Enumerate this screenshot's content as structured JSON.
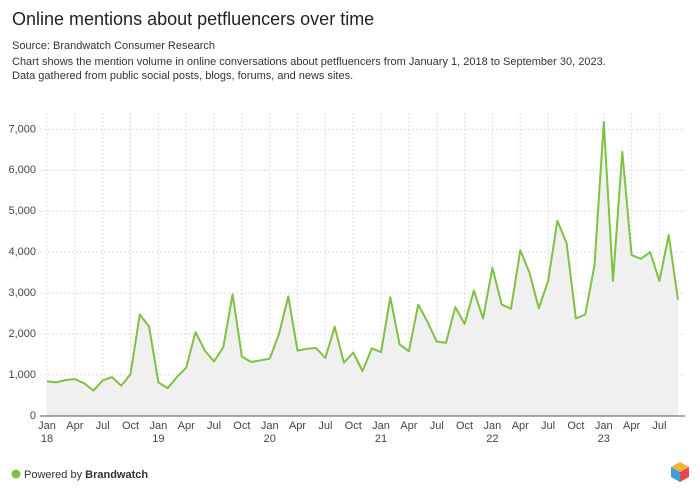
{
  "chart_data": {
    "type": "line",
    "title": "Online mentions about petfluencers over time",
    "source": "Source: Brandwatch Consumer Research",
    "notes": [
      "Chart shows the mention volume in online conversations about petfluencers from January 1, 2018 to September 30, 2023.",
      "Data gathered from public social posts, blogs, forums, and news sites."
    ],
    "categories": [
      "Jan 18",
      null,
      null,
      "Apr",
      null,
      null,
      "Jul",
      null,
      null,
      "Oct",
      null,
      null,
      "Jan 19",
      null,
      null,
      "Apr",
      null,
      null,
      "Jul",
      null,
      null,
      "Oct",
      null,
      null,
      "Jan 20",
      null,
      null,
      "Apr",
      null,
      null,
      "Jul",
      null,
      null,
      "Oct",
      null,
      null,
      "Jan 21",
      null,
      null,
      "Apr",
      null,
      null,
      "Jul",
      null,
      null,
      "Oct",
      null,
      null,
      "Jan 22",
      null,
      null,
      "Apr",
      null,
      null,
      "Jul",
      null,
      null,
      "Oct",
      null,
      null,
      "Jan 23",
      null,
      null,
      "Apr",
      null,
      null,
      "Jul",
      null,
      null
    ],
    "values": [
      850,
      820,
      880,
      900,
      800,
      620,
      870,
      950,
      740,
      1020,
      2480,
      2180,
      820,
      680,
      950,
      1180,
      2050,
      1600,
      1330,
      1680,
      2970,
      1450,
      1320,
      1360,
      1400,
      2000,
      2920,
      1600,
      1640,
      1660,
      1420,
      2180,
      1300,
      1550,
      1100,
      1650,
      1560,
      2900,
      1750,
      1580,
      2720,
      2300,
      1820,
      1790,
      2660,
      2250,
      3060,
      2380,
      3620,
      2720,
      2620,
      4050,
      3500,
      2630,
      3300,
      4770,
      4220,
      2380,
      2480,
      3680,
      7180,
      3300,
      6450,
      3930,
      3840,
      4000,
      3300,
      4420,
      2840
    ],
    "color": "#7dc242",
    "area_color": "#f0f0f0",
    "ylim": [
      0,
      7400
    ],
    "yticks": [
      0,
      {
        "value": 1000,
        "label": "1,000"
      },
      {
        "value": 2000,
        "label": "2,000"
      },
      {
        "value": 3000,
        "label": "3,000"
      },
      {
        "value": 4000,
        "label": "4,000"
      },
      {
        "value": 5000,
        "label": "5,000"
      },
      {
        "value": 6000,
        "label": "6,000"
      },
      {
        "value": 7000,
        "label": "7,000"
      }
    ],
    "grid": true,
    "footer": {
      "prefix": "Powered by",
      "brand": "Brandwatch"
    }
  }
}
